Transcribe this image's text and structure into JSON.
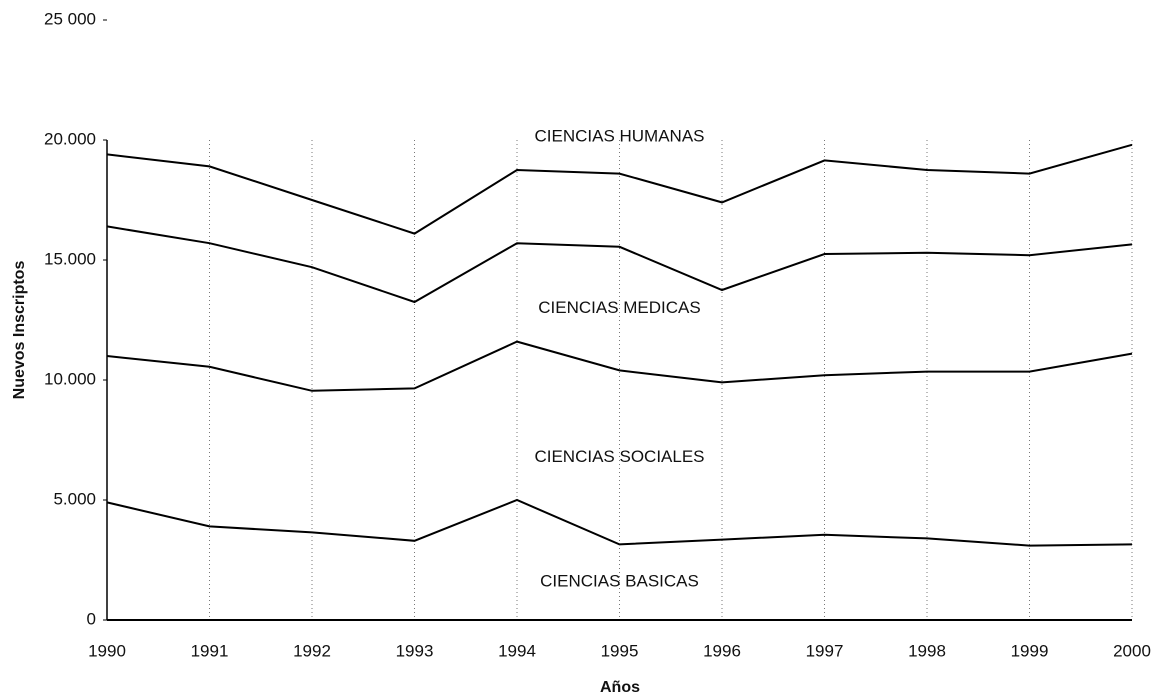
{
  "chart_data": {
    "type": "stacked-area",
    "x_label": "Años",
    "y_label": "Nuevos Inscriptos",
    "categories": [
      "1990",
      "1991",
      "1992",
      "1993",
      "1994",
      "1995",
      "1996",
      "1997",
      "1998",
      "1999",
      "2000"
    ],
    "series": [
      {
        "name": "CIENCIAS BASICAS",
        "color": "#000000",
        "values": [
          4900,
          3900,
          3650,
          3300,
          5000,
          3150,
          3350,
          3550,
          3400,
          3100,
          3150
        ]
      },
      {
        "name": "CIENCIAS SOCIALES",
        "color": "#000000",
        "values": [
          6100,
          6650,
          5900,
          6350,
          6600,
          7250,
          6550,
          6650,
          6950,
          7250,
          7950
        ]
      },
      {
        "name": "CIENCIAS MEDICAS",
        "color": "#000000",
        "values": [
          5400,
          5150,
          5150,
          3600,
          4100,
          5150,
          3850,
          5050,
          4950,
          4850,
          4550
        ]
      },
      {
        "name": "CIENCIAS HUMANAS",
        "color": "#000000",
        "values": [
          3000,
          3200,
          2800,
          2850,
          3050,
          3050,
          3650,
          3900,
          3450,
          3400,
          4150
        ]
      }
    ],
    "ylim": [
      0,
      25000
    ],
    "yticks": [
      0,
      {
        "value": 5000,
        "label": "5.000"
      },
      {
        "value": 10000,
        "label": "10.000"
      },
      {
        "value": 15000,
        "label": "15.000"
      },
      {
        "value": 20000,
        "label": "20.000"
      },
      {
        "value": 25000,
        "label": "25 000"
      }
    ],
    "xgrid": true
  }
}
